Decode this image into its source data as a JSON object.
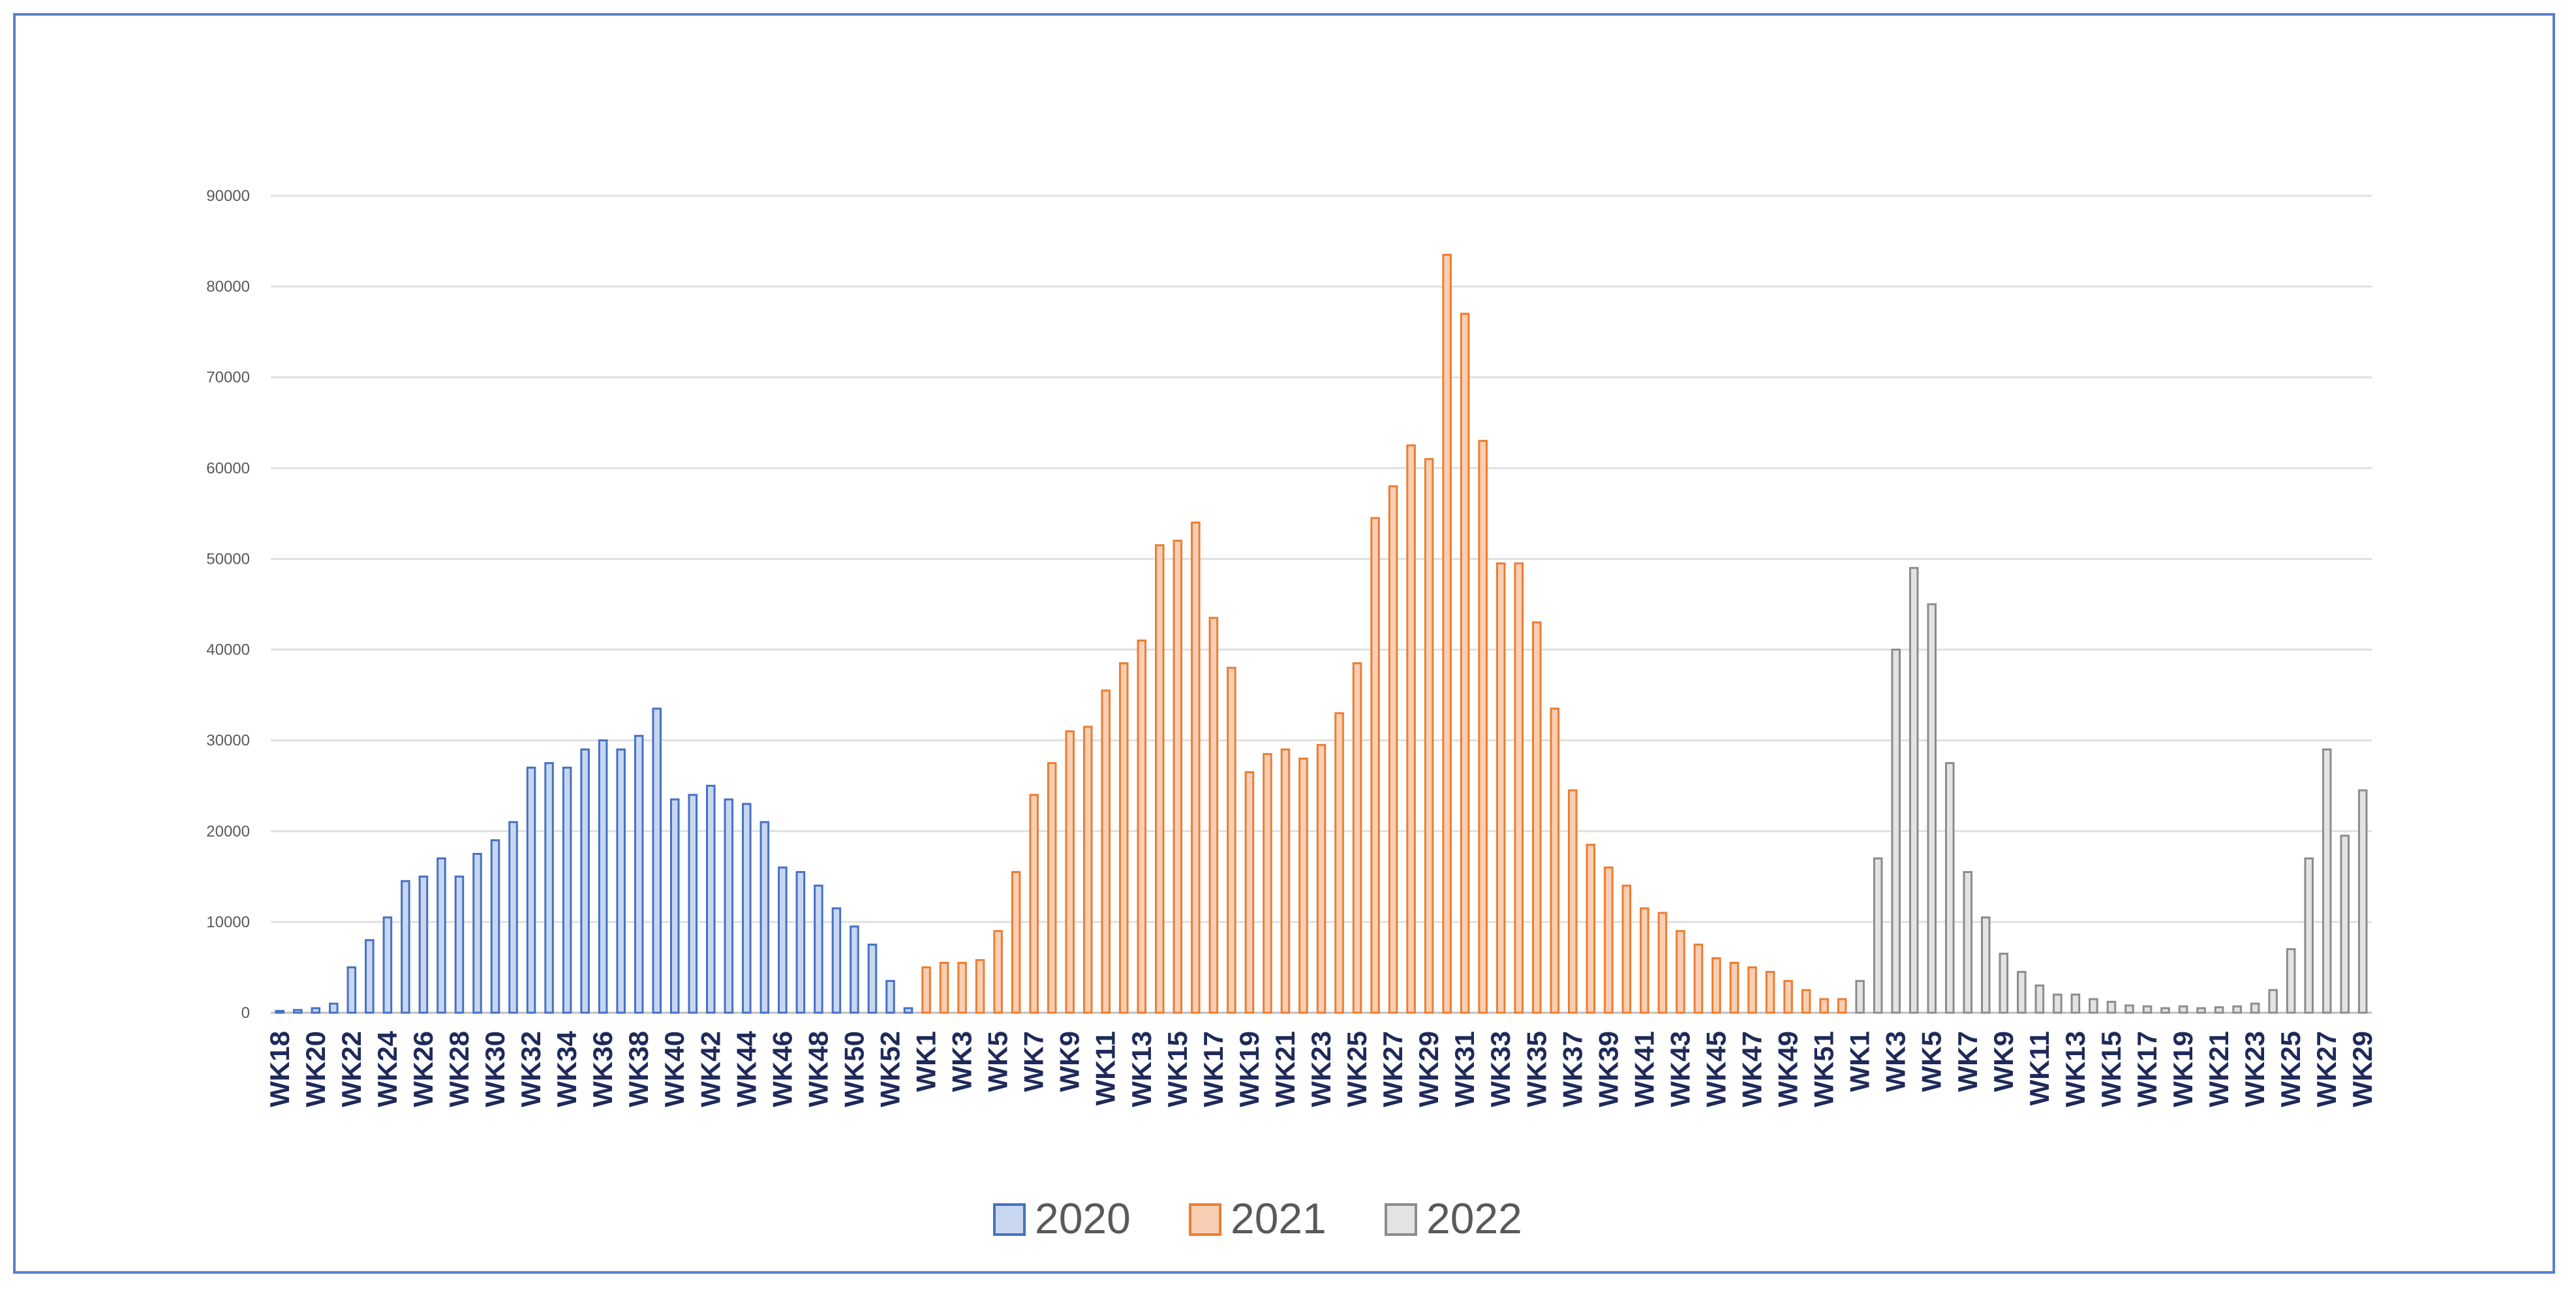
{
  "chart_data": {
    "type": "bar",
    "title": "",
    "xlabel": "",
    "ylabel": "",
    "ylim": [
      0,
      90000
    ],
    "yticks": [
      0,
      10000,
      20000,
      30000,
      40000,
      50000,
      60000,
      70000,
      80000,
      90000
    ],
    "grid": true,
    "legend_position": "bottom-center",
    "series": [
      {
        "name": "2020",
        "color": "#4472c4",
        "fill": "#c9d6ef",
        "categories": [
          "WK18",
          "WK19",
          "WK20",
          "WK21",
          "WK22",
          "WK23",
          "WK24",
          "WK25",
          "WK26",
          "WK27",
          "WK28",
          "WK29",
          "WK30",
          "WK31",
          "WK32",
          "WK33",
          "WK34",
          "WK35",
          "WK36",
          "WK37",
          "WK38",
          "WK39",
          "WK40",
          "WK41",
          "WK42",
          "WK43",
          "WK44",
          "WK45",
          "WK46",
          "WK47",
          "WK48",
          "WK49",
          "WK50",
          "WK51",
          "WK52",
          "WK53"
        ],
        "values": [
          200,
          300,
          500,
          1000,
          5000,
          8000,
          10500,
          14500,
          15000,
          17000,
          15000,
          17500,
          19000,
          21000,
          27000,
          27500,
          27000,
          29000,
          30000,
          29000,
          30500,
          33500,
          23500,
          24000,
          25000,
          23500,
          23000,
          21000,
          16000,
          15500,
          14000,
          11500,
          9500,
          7500,
          3500,
          500
        ]
      },
      {
        "name": "2021",
        "color": "#ed7d31",
        "fill": "#f8cfb4",
        "categories": [
          "WK1",
          "WK2",
          "WK3",
          "WK4",
          "WK5",
          "WK6",
          "WK7",
          "WK8",
          "WK9",
          "WK10",
          "WK11",
          "WK12",
          "WK13",
          "WK14",
          "WK15",
          "WK16",
          "WK17",
          "WK18",
          "WK19",
          "WK20",
          "WK21",
          "WK22",
          "WK23",
          "WK24",
          "WK25",
          "WK26",
          "WK27",
          "WK28",
          "WK29",
          "WK30",
          "WK31",
          "WK32",
          "WK33",
          "WK34",
          "WK35",
          "WK36",
          "WK37",
          "WK38",
          "WK39",
          "WK40",
          "WK41",
          "WK42",
          "WK43",
          "WK44",
          "WK45",
          "WK46",
          "WK47",
          "WK48",
          "WK49",
          "WK50",
          "WK51",
          "WK52"
        ],
        "values": [
          5000,
          5500,
          5500,
          5800,
          9000,
          15500,
          24000,
          27500,
          31000,
          31500,
          35500,
          38500,
          41000,
          51500,
          52000,
          54000,
          43500,
          38000,
          26500,
          28500,
          29000,
          28000,
          29500,
          33000,
          38500,
          54500,
          58000,
          62500,
          61000,
          83500,
          77000,
          63000,
          49500,
          49500,
          43000,
          33500,
          24500,
          18500,
          16000,
          14000,
          11500,
          11000,
          9000,
          7500,
          6000,
          5500,
          5000,
          4500,
          3500,
          2500,
          1500,
          1500
        ]
      },
      {
        "name": "2022",
        "color": "#8c8c8c",
        "fill": "#e3e3e3",
        "categories": [
          "WK1",
          "WK2",
          "WK3",
          "WK4",
          "WK5",
          "WK6",
          "WK7",
          "WK8",
          "WK9",
          "WK10",
          "WK11",
          "WK12",
          "WK13",
          "WK14",
          "WK15",
          "WK16",
          "WK17",
          "WK18",
          "WK19",
          "WK20",
          "WK21",
          "WK22",
          "WK23",
          "WK24",
          "WK25",
          "WK26",
          "WK27",
          "WK28",
          "WK29"
        ],
        "values": [
          3500,
          17000,
          40000,
          49000,
          45000,
          27500,
          15500,
          10500,
          6500,
          4500,
          3000,
          2000,
          2000,
          1500,
          1200,
          800,
          700,
          500,
          700,
          500,
          600,
          700,
          1000,
          2500,
          7000,
          17000,
          29000,
          19500,
          24500
        ]
      }
    ]
  }
}
